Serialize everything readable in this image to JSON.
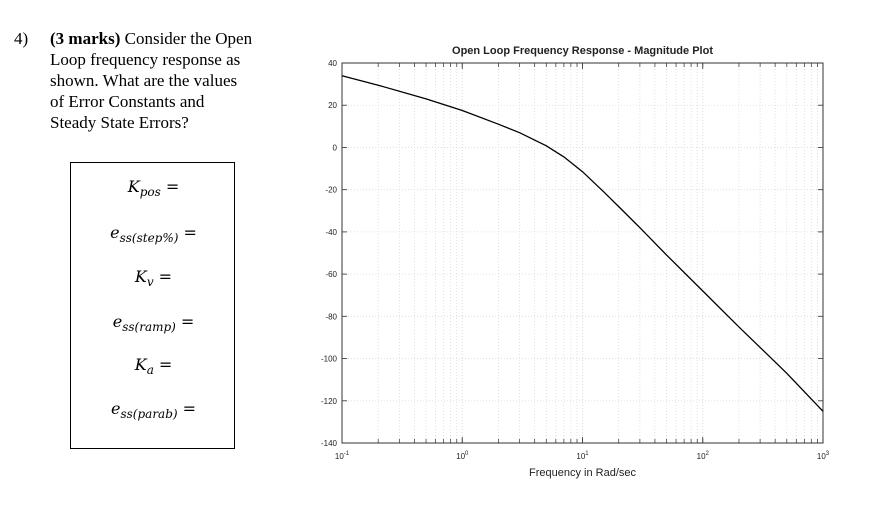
{
  "question": {
    "number": "4)",
    "marks": "(3 marks)",
    "text": " Consider the Open Loop frequency response as shown. What are the values of Error Constants and Steady State Errors?"
  },
  "answers": [
    {
      "symbol": "K",
      "sub": "pos",
      "eq": "="
    },
    {
      "symbol": "e",
      "sub": "ss(step%)",
      "eq": "="
    },
    {
      "symbol": "K",
      "sub": "v",
      "eq": "="
    },
    {
      "symbol": "e",
      "sub": "ss(ramp)",
      "eq": "="
    },
    {
      "symbol": "K",
      "sub": "a",
      "eq": "="
    },
    {
      "symbol": "e",
      "sub": "ss(parab)",
      "eq": "="
    }
  ],
  "chart_data": {
    "type": "line",
    "title": "Open Loop Frequency Response - Magnitude Plot",
    "xlabel": "Frequency in Rad/sec",
    "ylabel": "",
    "x_scale": "log",
    "xlim": [
      0.1,
      1000
    ],
    "ylim": [
      -140,
      40
    ],
    "x_ticks": [
      {
        "base": "10",
        "exp": "-1"
      },
      {
        "base": "10",
        "exp": "0"
      },
      {
        "base": "10",
        "exp": "1"
      },
      {
        "base": "10",
        "exp": "2"
      },
      {
        "base": "10",
        "exp": "3"
      }
    ],
    "y_ticks": [
      "40",
      "20",
      "0",
      "-20",
      "-40",
      "-60",
      "-80",
      "-100",
      "-120",
      "-140"
    ],
    "grid": true,
    "line_color": "#000000",
    "series": [
      {
        "x": [
          0.1,
          0.2,
          0.5,
          1,
          2,
          3,
          5,
          7,
          10,
          15,
          20,
          30,
          50,
          100,
          200,
          500,
          1000
        ],
        "y": [
          34,
          29.5,
          23,
          17.5,
          11,
          7,
          0.8,
          -4.5,
          -11.5,
          -21,
          -28,
          -38,
          -51,
          -68,
          -85,
          -107,
          -125
        ]
      }
    ]
  }
}
